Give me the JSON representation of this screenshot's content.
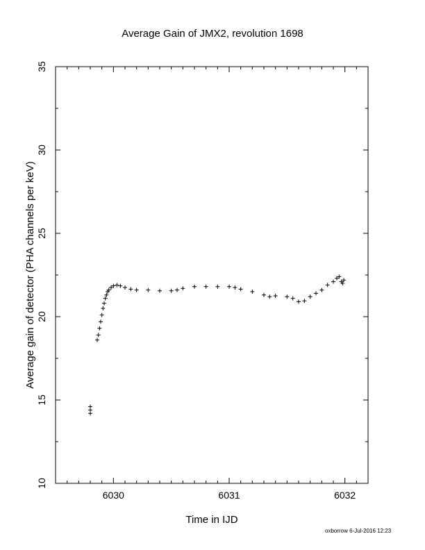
{
  "chart_data": {
    "type": "scatter",
    "title": "Average Gain of JMX2, revolution 1698",
    "xlabel": "Time in IJD",
    "ylabel": "Average gain of detector (PHA channels per keV)",
    "xlim": [
      6029.5,
      6032.2
    ],
    "ylim": [
      10,
      35
    ],
    "xticks": [
      "6030",
      "6031",
      "6032"
    ],
    "yticks": [
      "10",
      "15",
      "20",
      "25",
      "30",
      "35"
    ],
    "marker": "plus",
    "color": "#000000",
    "grid": false,
    "series": [
      {
        "x": [
          6029.8,
          6029.8,
          6029.8,
          6029.86,
          6029.87,
          6029.88,
          6029.89,
          6029.9,
          6029.91,
          6029.92,
          6029.93,
          6029.94,
          6029.95,
          6029.96,
          6029.98,
          6030.0,
          6030.03,
          6030.06,
          6030.1,
          6030.15,
          6030.2,
          6030.3,
          6030.4,
          6030.5,
          6030.55,
          6030.6,
          6030.7,
          6030.8,
          6030.9,
          6031.0,
          6031.05,
          6031.1,
          6031.2,
          6031.3,
          6031.35,
          6031.4,
          6031.5,
          6031.55,
          6031.6,
          6031.65,
          6031.7,
          6031.75,
          6031.8,
          6031.85,
          6031.9,
          6031.93,
          6031.95,
          6031.97,
          6031.98,
          6031.99
        ],
        "y": [
          14.2,
          14.4,
          14.6,
          18.6,
          18.9,
          19.3,
          19.7,
          20.1,
          20.5,
          20.8,
          21.1,
          21.3,
          21.5,
          21.6,
          21.75,
          21.85,
          21.9,
          21.85,
          21.75,
          21.65,
          21.6,
          21.6,
          21.55,
          21.55,
          21.6,
          21.7,
          21.8,
          21.8,
          21.8,
          21.8,
          21.75,
          21.65,
          21.5,
          21.3,
          21.2,
          21.25,
          21.2,
          21.1,
          20.9,
          20.95,
          21.2,
          21.4,
          21.6,
          21.9,
          22.1,
          22.3,
          22.4,
          22.1,
          22.0,
          22.2
        ]
      }
    ]
  },
  "footer": {
    "stamp": "oxborrow  6-Jul-2016 12:23"
  }
}
